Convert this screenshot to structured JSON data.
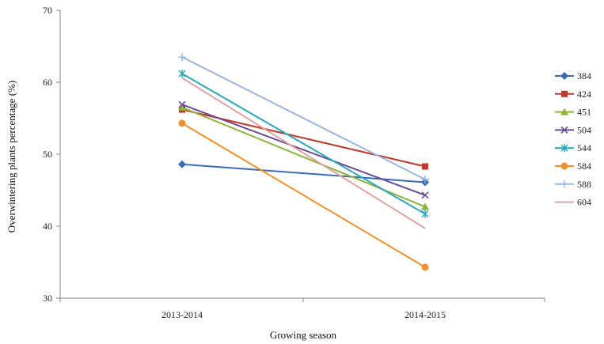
{
  "chart_data": {
    "type": "line",
    "categories": [
      "2013-2014",
      "2014-2015"
    ],
    "xlabel": "Growing season",
    "ylabel": "Overwintering  plants  percentage  (%)",
    "ylim": [
      30,
      70
    ],
    "yticks": [
      "30",
      "40",
      "50",
      "60",
      "70"
    ],
    "grid": false,
    "legend_position": "right",
    "series": [
      {
        "name": "384",
        "values": [
          48.6,
          46.1
        ],
        "color": "#3a6bb5",
        "marker": "diamond"
      },
      {
        "name": "424",
        "values": [
          56.2,
          48.3
        ],
        "color": "#c0392b",
        "marker": "square"
      },
      {
        "name": "451",
        "values": [
          56.5,
          42.7
        ],
        "color": "#8db33a",
        "marker": "triangle"
      },
      {
        "name": "504",
        "values": [
          56.9,
          44.3
        ],
        "color": "#6a4c93",
        "marker": "x"
      },
      {
        "name": "544",
        "values": [
          61.2,
          41.7
        ],
        "color": "#2aa6b8",
        "marker": "star"
      },
      {
        "name": "584",
        "values": [
          54.3,
          34.3
        ],
        "color": "#f0912c",
        "marker": "circle"
      },
      {
        "name": "588",
        "values": [
          63.5,
          46.5
        ],
        "color": "#99b6dc",
        "marker": "plus"
      },
      {
        "name": "604",
        "values": [
          60.6,
          39.7
        ],
        "color": "#e0a4a0",
        "marker": "none"
      }
    ]
  }
}
